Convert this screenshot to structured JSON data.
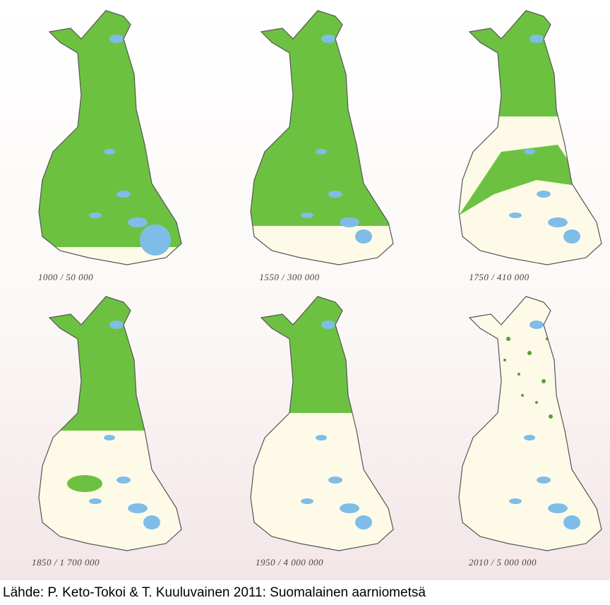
{
  "maps": [
    {
      "caption": "1000 / 50 000"
    },
    {
      "caption": "1550 / 300 000"
    },
    {
      "caption": "1750 / 410 000"
    },
    {
      "caption": "1850 / 1 700 000"
    },
    {
      "caption": "1950 / 4 000 000"
    },
    {
      "caption": "2010 / 5 000 000"
    }
  ],
  "source": "Lähde: P. Keto-Tokoi & T. Kuuluvainen 2011: Suomalainen aarniometsä"
}
